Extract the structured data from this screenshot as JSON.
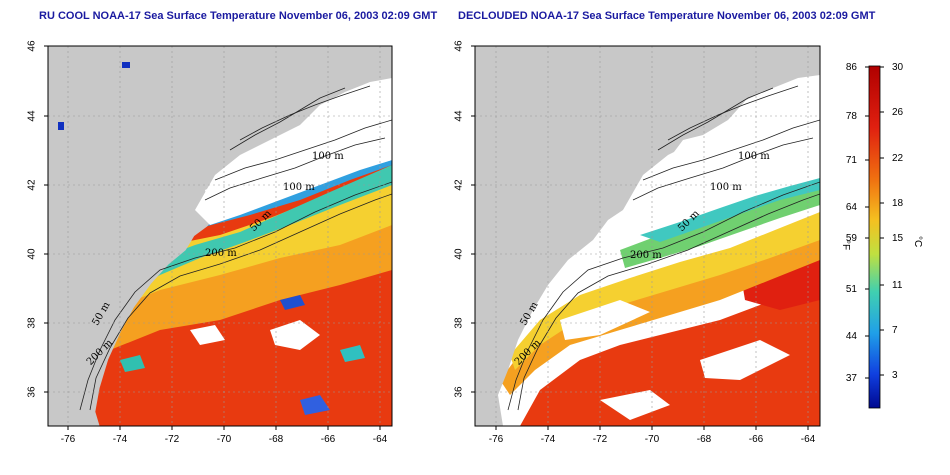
{
  "panels": [
    {
      "id": "left",
      "title": "RU COOL NOAA-17 Sea Surface Temperature November 06, 2003 02:09 GMT"
    },
    {
      "id": "right",
      "title": "DECLOUDED NOAA-17 Sea Surface Temperature November 06, 2003 02:09 GMT"
    }
  ],
  "axes": {
    "x_ticks": [
      "-76",
      "-74",
      "-72",
      "-70",
      "-68",
      "-66",
      "-64"
    ],
    "y_ticks": [
      "36",
      "38",
      "40",
      "42",
      "44",
      "46"
    ]
  },
  "contour_labels": [
    "100 m",
    "100 m",
    "50 m",
    "200 m",
    "50 m",
    "200 m"
  ],
  "colorbar": {
    "f_label": "°F",
    "c_label": "°C",
    "f_ticks": [
      "86",
      "78",
      "71",
      "64",
      "59",
      "51",
      "44",
      "37"
    ],
    "c_ticks": [
      "30",
      "26",
      "22",
      "18",
      "15",
      "11",
      "7",
      "3"
    ],
    "colors": [
      "#c00000",
      "#e62010",
      "#f06010",
      "#f5a010",
      "#f0e020",
      "#a0e040",
      "#40d0a0",
      "#20a0e0",
      "#1050e0",
      "#0010a0"
    ]
  }
}
